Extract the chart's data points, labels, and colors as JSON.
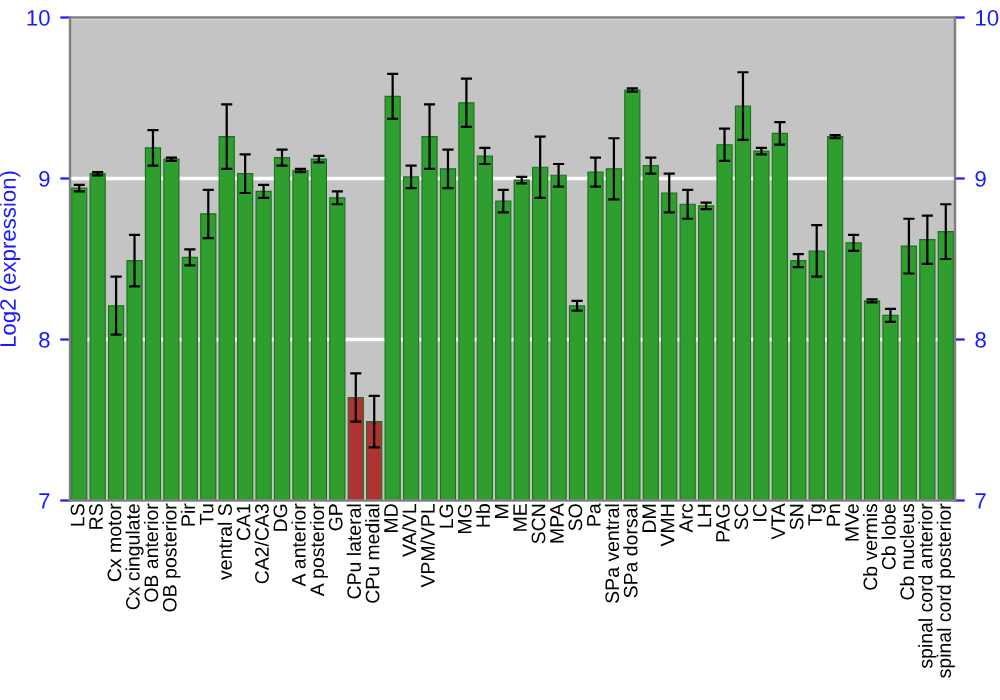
{
  "chart_data": {
    "type": "bar",
    "ylabel": "Log2 (expression)",
    "categories": [
      "LS",
      "RS",
      "Cx motor",
      "Cx cingulate",
      "OB anterior",
      "OB posterior",
      "Pir",
      "Tu",
      "ventral S",
      "CA1",
      "CA2/CA3",
      "DG",
      "A anterior",
      "A posterior",
      "GP",
      "CPu lateral",
      "CPu medial",
      "MD",
      "VA/VL",
      "VPM/VPL",
      "LG",
      "MG",
      "Hb",
      "M",
      "ME",
      "SCN",
      "MPA",
      "SO",
      "Pa",
      "SPa ventral",
      "SPa dorsal",
      "DM",
      "VMH",
      "Arc",
      "LH",
      "PAG",
      "SC",
      "IC",
      "VTA",
      "SN",
      "Tg",
      "Pn",
      "MVe",
      "Cb vermis",
      "Cb lobe",
      "Cb nucleus",
      "spinal cord anterior",
      "spinal cord posterior"
    ],
    "values": [
      8.94,
      9.03,
      8.21,
      8.49,
      9.19,
      9.12,
      8.51,
      8.78,
      9.26,
      9.03,
      8.92,
      9.13,
      9.05,
      9.12,
      8.88,
      7.64,
      7.49,
      9.51,
      9.01,
      9.26,
      9.06,
      9.47,
      9.14,
      8.86,
      8.99,
      9.07,
      9.02,
      8.21,
      9.04,
      9.06,
      9.55,
      9.08,
      8.91,
      8.84,
      8.83,
      9.21,
      9.45,
      9.17,
      9.28,
      8.49,
      8.55,
      9.26,
      8.6,
      8.24,
      8.15,
      8.58,
      8.62,
      8.67
    ],
    "errors": [
      0.02,
      0.01,
      0.18,
      0.16,
      0.11,
      0.01,
      0.05,
      0.15,
      0.2,
      0.12,
      0.04,
      0.05,
      0.01,
      0.02,
      0.04,
      0.15,
      0.16,
      0.14,
      0.07,
      0.2,
      0.12,
      0.15,
      0.05,
      0.07,
      0.02,
      0.19,
      0.07,
      0.03,
      0.09,
      0.19,
      0.01,
      0.05,
      0.12,
      0.09,
      0.02,
      0.1,
      0.21,
      0.02,
      0.07,
      0.04,
      0.16,
      0.01,
      0.05,
      0.01,
      0.04,
      0.17,
      0.15,
      0.17
    ],
    "colors": [
      "#2e9e2e",
      "#2e9e2e",
      "#2e9e2e",
      "#2e9e2e",
      "#2e9e2e",
      "#2e9e2e",
      "#2e9e2e",
      "#2e9e2e",
      "#2e9e2e",
      "#2e9e2e",
      "#2e9e2e",
      "#2e9e2e",
      "#2e9e2e",
      "#2e9e2e",
      "#2e9e2e",
      "#b03232",
      "#b03232",
      "#2e9e2e",
      "#2e9e2e",
      "#2e9e2e",
      "#2e9e2e",
      "#2e9e2e",
      "#2e9e2e",
      "#2e9e2e",
      "#2e9e2e",
      "#2e9e2e",
      "#2e9e2e",
      "#2e9e2e",
      "#2e9e2e",
      "#2e9e2e",
      "#2e9e2e",
      "#2e9e2e",
      "#2e9e2e",
      "#2e9e2e",
      "#2e9e2e",
      "#2e9e2e",
      "#2e9e2e",
      "#2e9e2e",
      "#2e9e2e",
      "#2e9e2e",
      "#2e9e2e",
      "#2e9e2e",
      "#2e9e2e",
      "#2e9e2e",
      "#2e9e2e",
      "#2e9e2e",
      "#2e9e2e",
      "#2e9e2e"
    ],
    "ylim": [
      7,
      10
    ],
    "yticks": [
      7,
      8,
      9,
      10
    ],
    "y2lim": [
      7,
      10
    ],
    "y2ticks": [
      7,
      8,
      9,
      10
    ],
    "grid": "y"
  }
}
